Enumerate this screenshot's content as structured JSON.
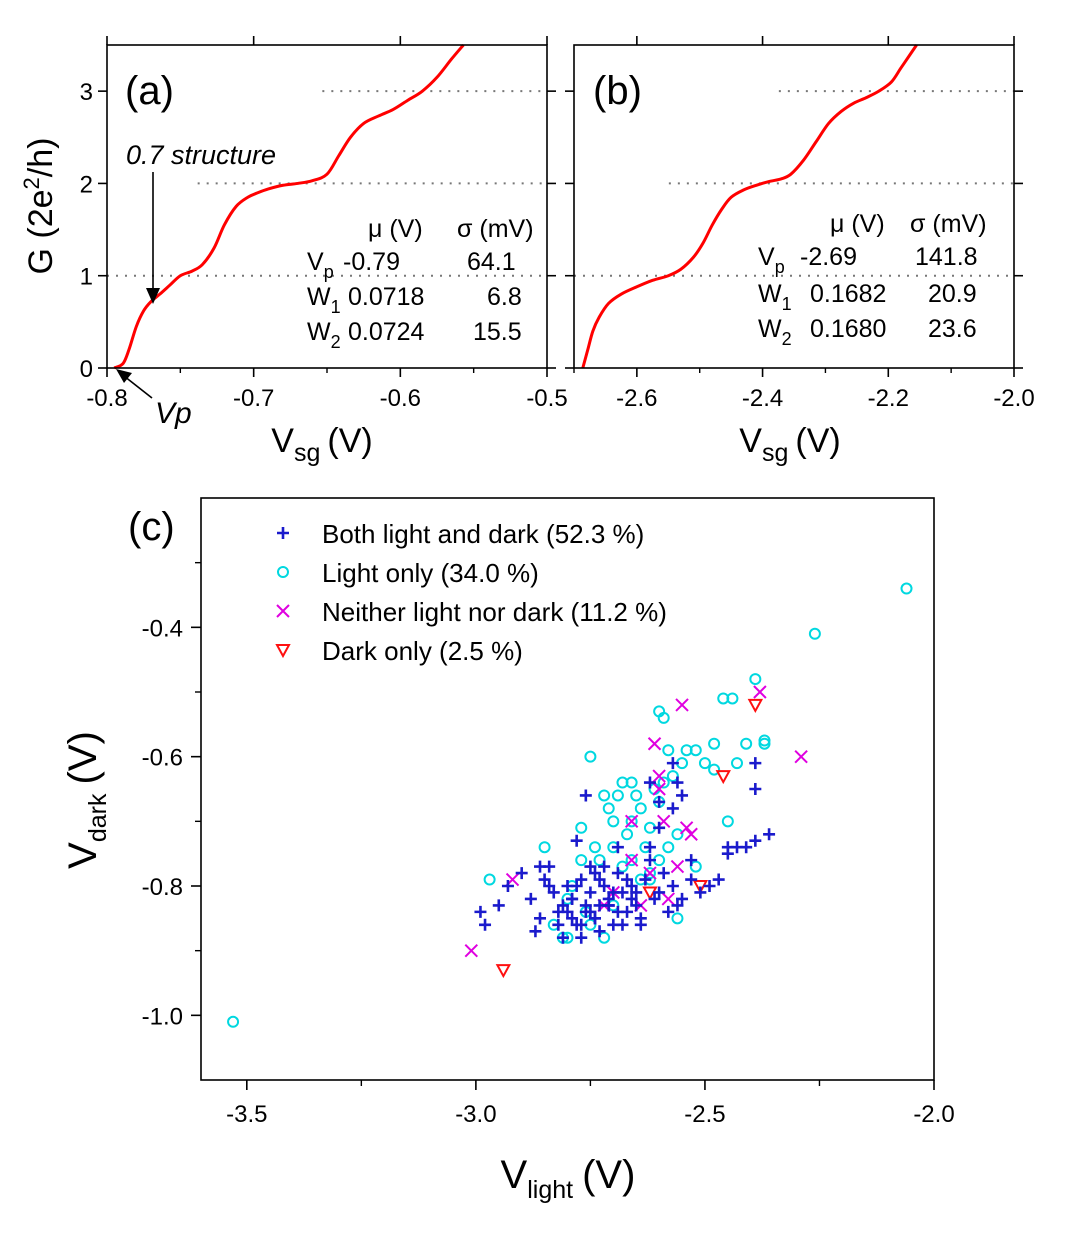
{
  "colors": {
    "curve": "#ff0000",
    "both": "#1a1acc",
    "light_only": "#00d8e0",
    "neither": "#e000e0",
    "dark_only": "#ff1010",
    "refline": "#777777"
  },
  "chart_data": [
    {
      "type": "line",
      "panel_label": "(a)",
      "xlabel_main": "V",
      "xlabel_sub": "sg",
      "xlabel_unit": "(V)",
      "ylabel_text": "G (2e",
      "ylabel_sup": "2",
      "ylabel_tail": "/h)",
      "xlim": [
        -0.8,
        -0.5
      ],
      "ylim": [
        0,
        3.5
      ],
      "xticks": [
        -0.8,
        -0.7,
        -0.6,
        -0.5
      ],
      "xtick_labels": [
        "-0.8",
        "-0.7",
        "-0.6",
        "-0.5"
      ],
      "yticks": [
        0,
        1,
        2,
        3
      ],
      "ytick_labels": [
        "0",
        "1",
        "2",
        "3"
      ],
      "reference_levels": [
        1,
        2,
        3
      ],
      "series": [
        {
          "x": [
            -0.795,
            -0.789,
            -0.785,
            -0.78,
            -0.775,
            -0.77,
            -0.764,
            -0.757,
            -0.75,
            -0.742,
            -0.735,
            -0.727,
            -0.72,
            -0.712,
            -0.704,
            -0.697,
            -0.69,
            -0.68,
            -0.67,
            -0.66,
            -0.65,
            -0.642,
            -0.634,
            -0.625,
            -0.615,
            -0.605,
            -0.595,
            -0.585,
            -0.575,
            -0.565,
            -0.557
          ],
          "y": [
            0.0,
            0.05,
            0.2,
            0.45,
            0.62,
            0.72,
            0.8,
            0.9,
            1.0,
            1.05,
            1.12,
            1.3,
            1.55,
            1.75,
            1.85,
            1.9,
            1.94,
            1.98,
            2.0,
            2.03,
            2.1,
            2.3,
            2.5,
            2.65,
            2.73,
            2.8,
            2.9,
            3.0,
            3.15,
            3.35,
            3.5
          ]
        }
      ],
      "annotations": [
        {
          "text": "0.7 structure",
          "x": -0.769,
          "y": 0.65
        },
        {
          "text": "Vp",
          "x": -0.795,
          "y": 0.0
        }
      ],
      "table": {
        "head_mu": "μ (V)",
        "head_sigma": "σ (mV)",
        "rows": [
          {
            "name": "V",
            "sub": "p",
            "mu": "-0.79",
            "sigma": "64.1"
          },
          {
            "name": "W",
            "sub": "1",
            "mu": "0.0718",
            "sigma": "6.8"
          },
          {
            "name": "W",
            "sub": "2",
            "mu": "0.0724",
            "sigma": "15.5"
          }
        ]
      }
    },
    {
      "type": "line",
      "panel_label": "(b)",
      "xlabel_main": "V",
      "xlabel_sub": "sg",
      "xlabel_unit": "(V)",
      "xlim": [
        -2.7,
        -2.0
      ],
      "ylim": [
        0,
        3.5
      ],
      "xticks": [
        -2.6,
        -2.4,
        -2.2,
        -2.0
      ],
      "xtick_labels": [
        "-2.6",
        "-2.4",
        "-2.2",
        "-2.0"
      ],
      "reference_levels": [
        1,
        2,
        3
      ],
      "series": [
        {
          "x": [
            -2.686,
            -2.678,
            -2.67,
            -2.66,
            -2.645,
            -2.625,
            -2.6,
            -2.575,
            -2.55,
            -2.53,
            -2.51,
            -2.495,
            -2.48,
            -2.465,
            -2.45,
            -2.43,
            -2.41,
            -2.39,
            -2.37,
            -2.355,
            -2.335,
            -2.315,
            -2.295,
            -2.275,
            -2.255,
            -2.235,
            -2.215,
            -2.195,
            -2.18,
            -2.165,
            -2.155
          ],
          "y": [
            0.0,
            0.2,
            0.4,
            0.55,
            0.7,
            0.8,
            0.88,
            0.95,
            1.0,
            1.07,
            1.2,
            1.35,
            1.55,
            1.72,
            1.85,
            1.93,
            1.98,
            2.02,
            2.05,
            2.1,
            2.25,
            2.45,
            2.65,
            2.78,
            2.87,
            2.93,
            3.0,
            3.1,
            3.25,
            3.4,
            3.5
          ]
        }
      ],
      "table": {
        "head_mu": "μ (V)",
        "head_sigma": "σ (mV)",
        "rows": [
          {
            "name": "V",
            "sub": "p",
            "mu": "-2.69",
            "sigma": "141.8"
          },
          {
            "name": "W",
            "sub": "1",
            "mu": "0.1682",
            "sigma": "20.9"
          },
          {
            "name": "W",
            "sub": "2",
            "mu": "0.1680",
            "sigma": "23.6"
          }
        ]
      }
    },
    {
      "type": "scatter",
      "panel_label": "(c)",
      "xlabel_main": "V",
      "xlabel_sub": "light",
      "xlabel_unit": "(V)",
      "ylabel_main": "V",
      "ylabel_sub": "dark",
      "ylabel_unit": "(V)",
      "xlim": [
        -3.6,
        -2.0
      ],
      "ylim": [
        -1.1,
        -0.2
      ],
      "xticks": [
        -3.5,
        -3.0,
        -2.5,
        -2.0
      ],
      "xtick_labels": [
        "-3.5",
        "-3.0",
        "-2.5",
        "-2.0"
      ],
      "yticks": [
        -1.0,
        -0.8,
        -0.6,
        -0.4
      ],
      "ytick_labels": [
        "-1.0",
        "-0.8",
        "-0.6",
        "-0.4"
      ],
      "legend_position": "top-left",
      "series": [
        {
          "name": "Both light and dark (52.3 %)",
          "marker": "plus",
          "x": [
            -2.99,
            -2.98,
            -2.95,
            -2.93,
            -2.9,
            -2.88,
            -2.87,
            -2.86,
            -2.85,
            -2.84,
            -2.83,
            -2.82,
            -2.81,
            -2.8,
            -2.79,
            -2.78,
            -2.77,
            -2.77,
            -2.76,
            -2.75,
            -2.75,
            -2.74,
            -2.73,
            -2.72,
            -2.71,
            -2.7,
            -2.69,
            -2.68,
            -2.67,
            -2.66,
            -2.65,
            -2.64,
            -2.63,
            -2.62,
            -2.61,
            -2.6,
            -2.59,
            -2.58,
            -2.57,
            -2.56,
            -2.55,
            -2.53,
            -2.51,
            -2.49,
            -2.47,
            -2.45,
            -2.43,
            -2.41,
            -2.39,
            -2.36,
            -2.82,
            -2.8,
            -2.79,
            -2.78,
            -2.76,
            -2.74,
            -2.73,
            -2.71,
            -2.7,
            -2.69,
            -2.68,
            -2.66,
            -2.64,
            -2.62,
            -2.6,
            -2.57,
            -2.56,
            -2.57,
            -2.55,
            -2.6,
            -2.62,
            -2.53,
            -2.45,
            -2.39,
            -2.39,
            -2.76,
            -2.84,
            -2.86,
            -2.78,
            -2.72,
            -2.69,
            -2.67,
            -2.65,
            -2.74,
            -2.79,
            -2.81,
            -2.77,
            -2.75,
            -2.73,
            -2.71
          ],
          "y": [
            -0.84,
            -0.86,
            -0.83,
            -0.8,
            -0.78,
            -0.82,
            -0.87,
            -0.85,
            -0.79,
            -0.77,
            -0.81,
            -0.84,
            -0.83,
            -0.8,
            -0.82,
            -0.86,
            -0.79,
            -0.88,
            -0.84,
            -0.81,
            -0.77,
            -0.85,
            -0.83,
            -0.8,
            -0.82,
            -0.86,
            -0.78,
            -0.81,
            -0.84,
            -0.8,
            -0.83,
            -0.86,
            -0.79,
            -0.76,
            -0.82,
            -0.81,
            -0.78,
            -0.84,
            -0.8,
            -0.83,
            -0.82,
            -0.79,
            -0.81,
            -0.8,
            -0.79,
            -0.75,
            -0.74,
            -0.74,
            -0.73,
            -0.72,
            -0.86,
            -0.84,
            -0.82,
            -0.8,
            -0.83,
            -0.85,
            -0.87,
            -0.83,
            -0.81,
            -0.84,
            -0.86,
            -0.82,
            -0.85,
            -0.64,
            -0.67,
            -0.61,
            -0.64,
            -0.68,
            -0.66,
            -0.71,
            -0.74,
            -0.76,
            -0.74,
            -0.61,
            -0.65,
            -0.66,
            -0.8,
            -0.77,
            -0.73,
            -0.77,
            -0.74,
            -0.79,
            -0.81,
            -0.78,
            -0.85,
            -0.88,
            -0.86,
            -0.84,
            -0.79,
            -0.83
          ]
        },
        {
          "name": "Light only (34.0 %)",
          "marker": "circle",
          "x": [
            -3.53,
            -2.97,
            -2.85,
            -2.83,
            -2.81,
            -2.8,
            -2.79,
            -2.77,
            -2.76,
            -2.75,
            -2.74,
            -2.73,
            -2.72,
            -2.71,
            -2.7,
            -2.69,
            -2.68,
            -2.67,
            -2.66,
            -2.65,
            -2.64,
            -2.63,
            -2.62,
            -2.61,
            -2.6,
            -2.59,
            -2.58,
            -2.57,
            -2.56,
            -2.55,
            -2.54,
            -2.52,
            -2.5,
            -2.48,
            -2.46,
            -2.44,
            -2.43,
            -2.41,
            -2.39,
            -2.37,
            -2.37,
            -2.26,
            -2.06,
            -2.75,
            -2.72,
            -2.7,
            -2.68,
            -2.66,
            -2.64,
            -2.62,
            -2.6,
            -2.58,
            -2.56,
            -2.6,
            -2.59,
            -2.52,
            -2.48,
            -2.45,
            -2.7,
            -2.66,
            -2.62,
            -2.77,
            -2.8
          ],
          "y": [
            -1.01,
            -0.79,
            -0.74,
            -0.86,
            -0.88,
            -0.82,
            -0.8,
            -0.76,
            -0.84,
            -0.6,
            -0.74,
            -0.76,
            -0.66,
            -0.68,
            -0.7,
            -0.66,
            -0.64,
            -0.72,
            -0.64,
            -0.66,
            -0.68,
            -0.74,
            -0.71,
            -0.65,
            -0.53,
            -0.54,
            -0.59,
            -0.63,
            -0.72,
            -0.61,
            -0.59,
            -0.59,
            -0.61,
            -0.58,
            -0.51,
            -0.51,
            -0.61,
            -0.58,
            -0.48,
            -0.575,
            -0.58,
            -0.41,
            -0.34,
            -0.86,
            -0.88,
            -0.83,
            -0.77,
            -0.76,
            -0.79,
            -0.78,
            -0.76,
            -0.74,
            -0.85,
            -0.67,
            -0.64,
            -0.77,
            -0.62,
            -0.7,
            -0.74,
            -0.7,
            -0.79,
            -0.71,
            -0.88
          ]
        },
        {
          "name": "Neither light nor dark (11.2 %)",
          "marker": "x",
          "x": [
            -3.01,
            -2.92,
            -2.66,
            -2.64,
            -2.61,
            -2.6,
            -2.6,
            -2.56,
            -2.55,
            -2.54,
            -2.53,
            -2.38,
            -2.29,
            -2.59,
            -2.72,
            -2.7,
            -2.62,
            -2.66,
            -2.58
          ],
          "y": [
            -0.9,
            -0.79,
            -0.7,
            -0.83,
            -0.58,
            -0.63,
            -0.65,
            -0.77,
            -0.52,
            -0.71,
            -0.72,
            -0.5,
            -0.6,
            -0.7,
            -0.83,
            -0.81,
            -0.78,
            -0.76,
            -0.82
          ]
        },
        {
          "name": "Dark only (2.5 %)",
          "marker": "triangle-down",
          "x": [
            -2.94,
            -2.62,
            -2.51,
            -2.46,
            -2.39
          ],
          "y": [
            -0.93,
            -0.81,
            -0.8,
            -0.63,
            -0.52
          ]
        }
      ]
    }
  ]
}
